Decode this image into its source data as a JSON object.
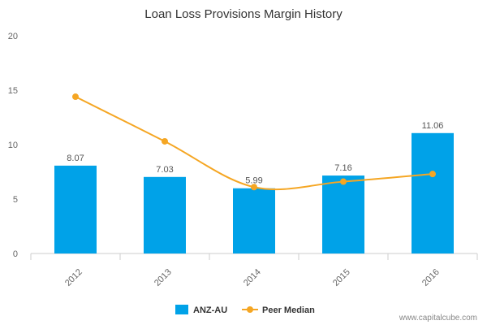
{
  "chart_data": {
    "type": "bar",
    "title": "Loan Loss Provisions Margin History",
    "xlabel": "",
    "ylabel": "",
    "categories": [
      "2012",
      "2013",
      "2014",
      "2015",
      "2016"
    ],
    "ylim": [
      0,
      20
    ],
    "yticks": [
      0,
      5,
      10,
      15,
      20
    ],
    "grid": false,
    "legend_position": "bottom-center",
    "series": [
      {
        "name": "ANZ-AU",
        "type": "bar",
        "color": "#00a2e8",
        "values": [
          8.07,
          7.03,
          5.99,
          7.16,
          11.06
        ],
        "labels": [
          "8.07",
          "7.03",
          "5.99",
          "7.16",
          "11.06"
        ]
      },
      {
        "name": "Peer Median",
        "type": "line",
        "color": "#f5a623",
        "values": [
          14.4,
          10.3,
          6.1,
          6.6,
          7.3
        ]
      }
    ],
    "credit": "www.capitalcube.com"
  }
}
